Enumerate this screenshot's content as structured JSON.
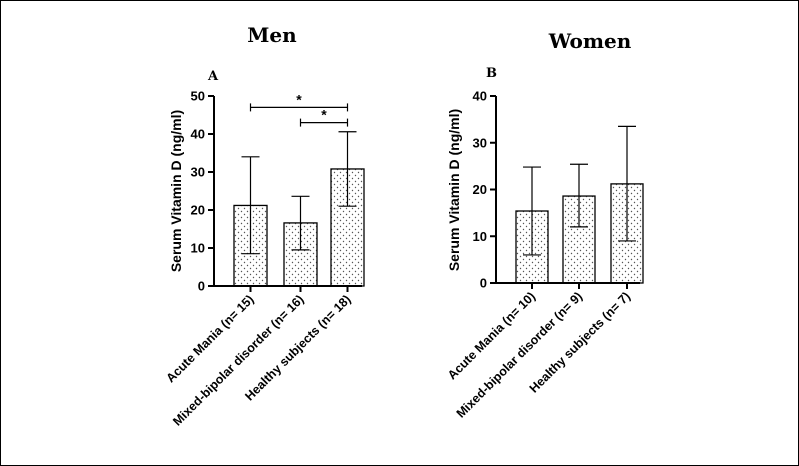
{
  "chart_data": [
    {
      "type": "bar",
      "title": "Men",
      "panel_label": "A",
      "ylabel": "Serum Vitamin D (ng/ml)",
      "xlabel": "",
      "ylim": [
        0,
        50
      ],
      "yticks": [
        0,
        10,
        20,
        30,
        40,
        50
      ],
      "tick_labels": [
        "0",
        "10",
        "20",
        "30",
        "40",
        "50"
      ],
      "categories": [
        "Acute Mania (n= 15)",
        "Mixed-bipolar disorder (n= 16)",
        "Healthy subjects (n= 18)"
      ],
      "values": [
        21.2,
        16.6,
        30.8
      ],
      "error_low": [
        8.5,
        9.5,
        21.0
      ],
      "error_high": [
        34.0,
        23.6,
        40.6
      ],
      "significance": [
        {
          "from": 0,
          "to": 2,
          "level": 47,
          "label": "*"
        },
        {
          "from": 1,
          "to": 2,
          "level": 43,
          "label": "*"
        }
      ]
    },
    {
      "type": "bar",
      "title": "Women",
      "panel_label": "B",
      "ylabel": "Serum Vitamin D (ng/ml)",
      "xlabel": "",
      "ylim": [
        0,
        40
      ],
      "yticks": [
        0,
        10,
        20,
        30,
        40
      ],
      "tick_labels": [
        "0",
        "10",
        "20",
        "30",
        "40"
      ],
      "categories": [
        "Acute Mania (n= 10)",
        "Mixed-bipolar disorder (n= 9)",
        "Healthy subjects (n= 7)"
      ],
      "values": [
        15.4,
        18.6,
        21.2
      ],
      "error_low": [
        6.0,
        12.0,
        9.0
      ],
      "error_high": [
        24.8,
        25.4,
        33.5
      ],
      "significance": []
    }
  ],
  "style": {
    "bar_fill": "#ffffff",
    "stroke": "#000000",
    "dot_color": "#555555"
  }
}
